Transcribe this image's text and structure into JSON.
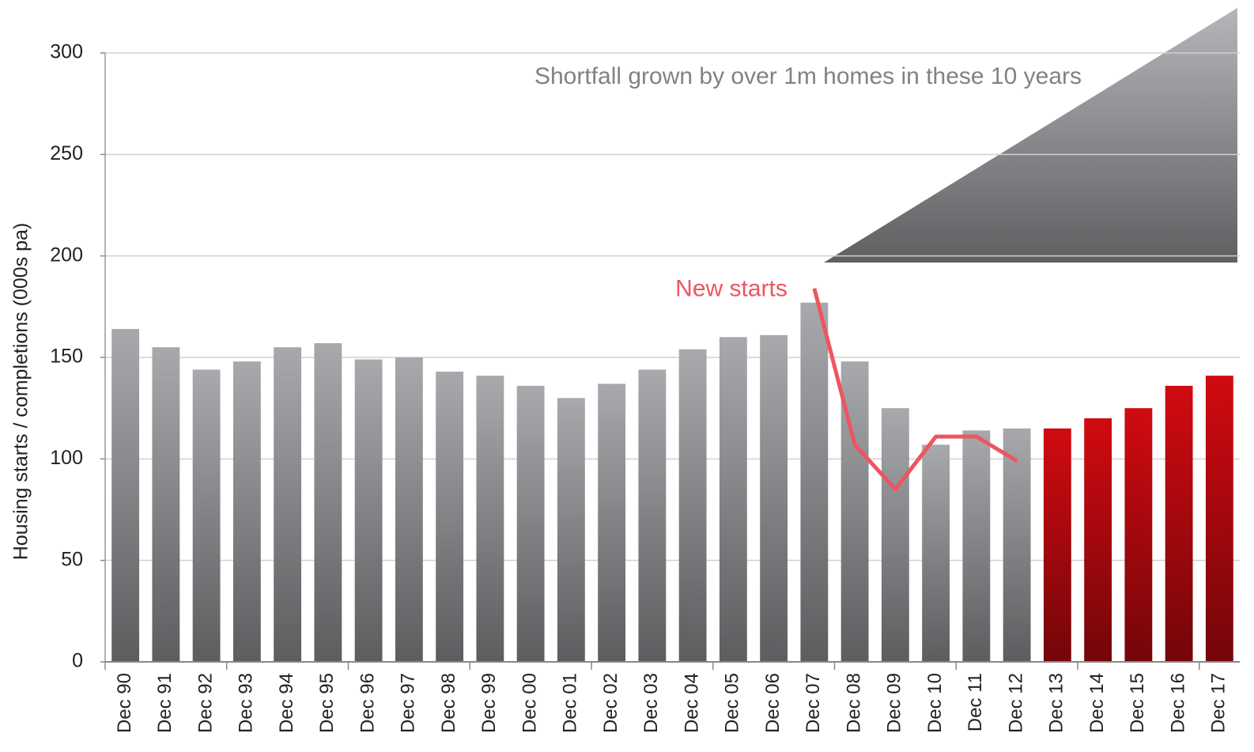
{
  "chart_data": {
    "type": "bar",
    "y_label": "Housing starts / completions (000s pa)",
    "annotation": "Shortfall grown by over 1m homes in these 10 years",
    "categories": [
      "Dec 90",
      "Dec 91",
      "Dec 92",
      "Dec 93",
      "Dec 94",
      "Dec 95",
      "Dec 96",
      "Dec 97",
      "Dec 98",
      "Dec 99",
      "Dec 00",
      "Dec 01",
      "Dec 02",
      "Dec 03",
      "Dec 04",
      "Dec 05",
      "Dec 06",
      "Dec 07",
      "Dec 08",
      "Dec 09",
      "Dec 10",
      "Dec 11",
      "Dec 12",
      "Dec 13",
      "Dec 14",
      "Dec 15",
      "Dec 16",
      "Dec 17"
    ],
    "values": [
      164,
      155,
      144,
      148,
      155,
      157,
      149,
      150,
      143,
      141,
      136,
      130,
      137,
      144,
      154,
      160,
      161,
      177,
      148,
      125,
      107,
      114,
      115,
      115,
      120,
      125,
      136,
      141
    ],
    "colors": [
      "#a7a9ac",
      "#a7a9ac",
      "#a7a9ac",
      "#a7a9ac",
      "#a7a9ac",
      "#a7a9ac",
      "#a7a9ac",
      "#a7a9ac",
      "#a7a9ac",
      "#a7a9ac",
      "#a7a9ac",
      "#a7a9ac",
      "#a7a9ac",
      "#a7a9ac",
      "#a7a9ac",
      "#a7a9ac",
      "#a7a9ac",
      "#a7a9ac",
      "#a7a9ac",
      "#a7a9ac",
      "#a7a9ac",
      "#a7a9ac",
      "#a7a9ac",
      "#d10a11",
      "#d10a11",
      "#d10a11",
      "#d10a11",
      "#d10a11"
    ],
    "series": [
      {
        "name": "New starts",
        "color": "#ee5560",
        "values": [
          null,
          null,
          null,
          null,
          null,
          null,
          null,
          null,
          null,
          null,
          null,
          null,
          null,
          null,
          null,
          null,
          null,
          184,
          107,
          85,
          111,
          111,
          99,
          null,
          null,
          null,
          null,
          null
        ]
      }
    ],
    "ylim": [
      0,
      300
    ],
    "yticks": [
      0,
      50,
      100,
      150,
      200,
      250,
      300
    ],
    "grid": true
  }
}
